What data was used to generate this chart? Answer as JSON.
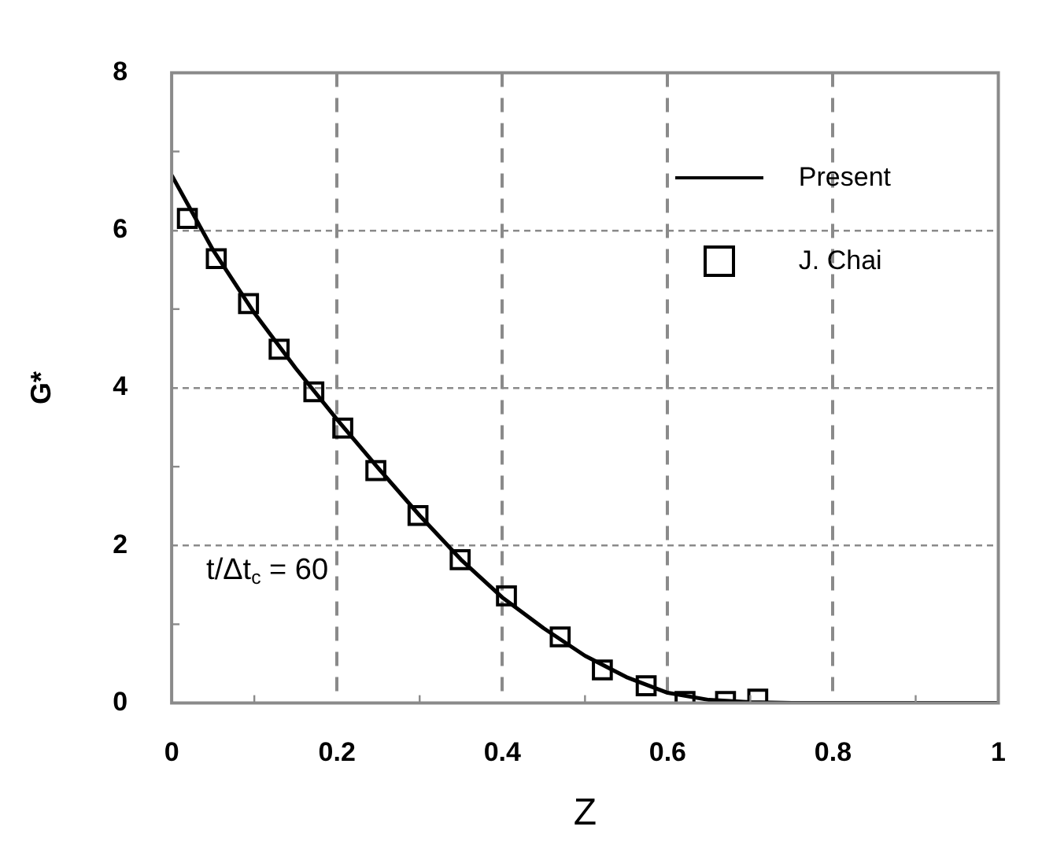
{
  "chart_data": {
    "type": "line",
    "xlabel": "Z",
    "ylabel": "G*",
    "annotations": [
      "t/Δt$_{c}$ = 60"
    ],
    "xlim": [
      0,
      1
    ],
    "xticks": [
      0,
      {
        "value": 0.1,
        "label": null
      },
      0.2,
      {
        "value": 0.3,
        "label": null
      },
      0.4,
      {
        "value": 0.5,
        "label": null
      },
      0.6,
      {
        "value": 0.7,
        "label": null
      },
      0.8,
      {
        "value": 0.9,
        "label": null
      },
      1
    ],
    "ylim": [
      0,
      8
    ],
    "yticks": [
      0,
      {
        "value": 1,
        "label": null
      },
      2,
      {
        "value": 3,
        "label": null
      },
      4,
      {
        "value": 5,
        "label": null
      },
      6,
      {
        "value": 7,
        "label": null
      },
      8
    ],
    "grid": true,
    "legend": "top right",
    "series": [
      {
        "name": "Present",
        "color": "#000000",
        "marker": "none",
        "line_style": "solid",
        "x": [
          0,
          0.05,
          0.1,
          0.15,
          0.2,
          0.25,
          0.3,
          0.35,
          0.4,
          0.45,
          0.5,
          0.55,
          0.6,
          0.65,
          0.7,
          0.75,
          1
        ],
        "values": [
          6.7,
          5.75,
          4.95,
          4.25,
          3.6,
          2.98,
          2.38,
          1.82,
          1.34,
          0.95,
          0.6,
          0.33,
          0.13,
          0.04,
          0.01,
          0,
          0
        ]
      },
      {
        "name": "J. Chai",
        "type": "scatter",
        "color": "#000000",
        "marker": "square",
        "x": [
          0.019,
          0.054,
          0.093,
          0.13,
          0.172,
          0.207,
          0.247,
          0.298,
          0.349,
          0.405,
          0.47,
          0.521,
          0.574,
          0.621,
          0.67,
          0.709
        ],
        "values": [
          6.15,
          5.64,
          5.07,
          4.49,
          3.95,
          3.49,
          2.95,
          2.38,
          1.82,
          1.36,
          0.84,
          0.42,
          0.22,
          0.02,
          0.02,
          0.05
        ]
      }
    ]
  }
}
